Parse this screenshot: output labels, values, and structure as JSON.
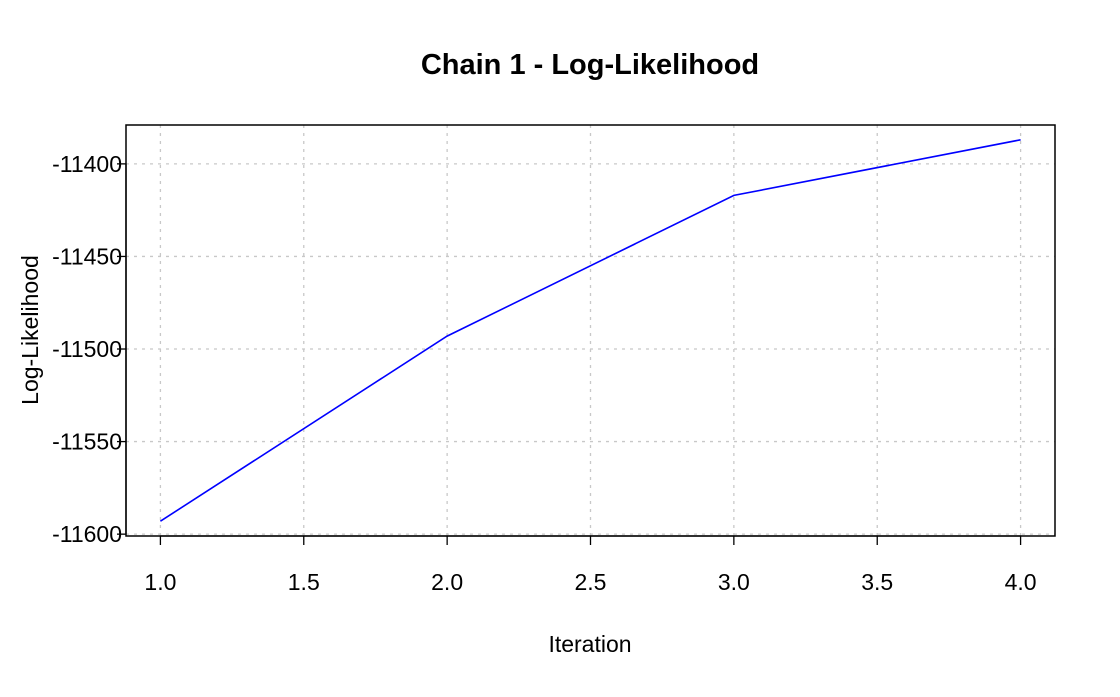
{
  "chart_data": {
    "type": "line",
    "title": "Chain 1 - Log-Likelihood",
    "xlabel": "Iteration",
    "ylabel": "Log-Likelihood",
    "xlim": [
      0.88,
      4.12
    ],
    "ylim": [
      -11601,
      -11379
    ],
    "x_ticks": [
      1.0,
      1.5,
      2.0,
      2.5,
      3.0,
      3.5,
      4.0
    ],
    "x_tick_labels": [
      "1.0",
      "1.5",
      "2.0",
      "2.5",
      "3.0",
      "3.5",
      "4.0"
    ],
    "y_ticks": [
      -11400,
      -11450,
      -11500,
      -11550,
      -11600
    ],
    "y_tick_labels": [
      "-11400",
      "-11450",
      "-11500",
      "-11550",
      "-11600"
    ],
    "grid": true,
    "series": [
      {
        "x": [
          1,
          2,
          3,
          4
        ],
        "values": [
          -11593,
          -11493,
          -11417,
          -11387
        ],
        "color": "#0000ff"
      }
    ]
  }
}
